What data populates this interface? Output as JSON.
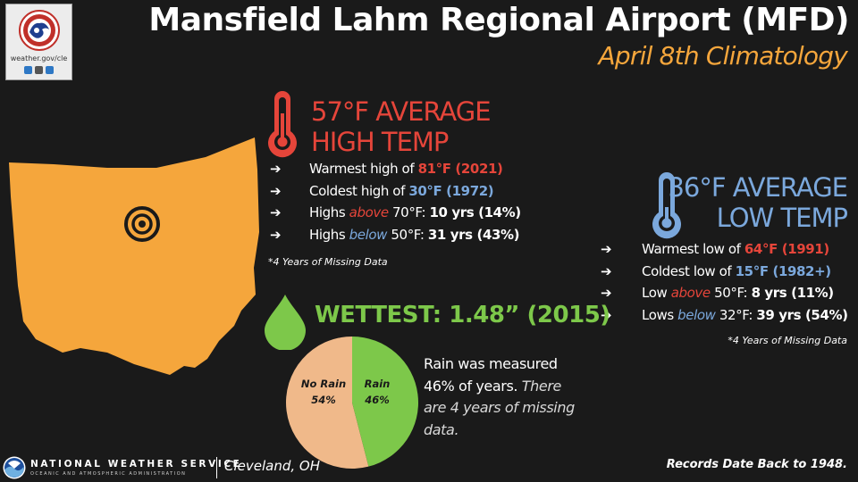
{
  "header": {
    "title": "Mansfield Lahm Regional Airport (MFD)",
    "subtitle": "April 8th Climatology"
  },
  "logo": {
    "url_text": "weather.gov/cle",
    "social_icons": [
      "twitter-icon",
      "instagram-icon",
      "facebook-icon"
    ]
  },
  "high_temp": {
    "heading_line1": "57°F AVERAGE",
    "heading_line2": "HIGH TEMP",
    "icon": "thermometer-hot-icon",
    "rows": [
      {
        "arrow": "➔",
        "label": "Warmest high of ",
        "value": "81°F (2021)"
      },
      {
        "arrow": "➔",
        "label": "Coldest high of ",
        "value": "30°F (1972)"
      },
      {
        "arrow": "➔",
        "prefix": "Highs ",
        "emph": "above",
        "mid": " 70°F: ",
        "value": "10 yrs (14%)"
      },
      {
        "arrow": "➔",
        "prefix": "Highs ",
        "emph": "below",
        "mid": " 50°F: ",
        "value": "31 yrs (43%)"
      }
    ],
    "note": "*4 Years of Missing Data"
  },
  "low_temp": {
    "heading_line1": "36°F AVERAGE",
    "heading_line2": "LOW TEMP",
    "icon": "thermometer-cold-icon",
    "rows": [
      {
        "arrow": "➔",
        "label": "Warmest low of ",
        "value": "64°F (1991)"
      },
      {
        "arrow": "➔",
        "label": "Coldest low of ",
        "value": "15°F (1982+)"
      },
      {
        "arrow": "➔",
        "prefix": "Low ",
        "emph": "above",
        "mid": " 50°F: ",
        "value": "8 yrs (11%)"
      },
      {
        "arrow": "➔",
        "prefix": "Lows ",
        "emph": "below",
        "mid": " 32°F: ",
        "value": "39 yrs (54%)"
      }
    ],
    "note": "*4 Years of Missing Data"
  },
  "wettest": {
    "icon": "raindrop-icon",
    "heading": "WETTEST: 1.48” (2015)",
    "text_plain": "Rain was measured 46% of years.",
    "text_italic": "There are 4 years of missing data."
  },
  "map": {
    "icon": "ohio-state-map-icon",
    "marker": "target-location-icon"
  },
  "chart_data": {
    "type": "pie",
    "slices": [
      {
        "label": "Rain",
        "pct_label": "46%",
        "value": 46,
        "color": "#7dc84a"
      },
      {
        "label": "No Rain",
        "pct_label": "54%",
        "value": 54,
        "color": "#f0b98a"
      }
    ]
  },
  "colors": {
    "background": "#1a1a1a",
    "accent_orange": "#f5a63c",
    "hot_red": "#e5453a",
    "cold_blue": "#7ba8dc",
    "rain_green": "#7dc84a",
    "pie_no_rain": "#f0b98a"
  },
  "footer": {
    "org_name": "NATIONAL WEATHER SERVICE",
    "org_sub": "OCEANIC AND ATMOSPHERIC ADMINISTRATION",
    "office": "Cleveland, OH",
    "records": "Records Date Back to 1948."
  }
}
